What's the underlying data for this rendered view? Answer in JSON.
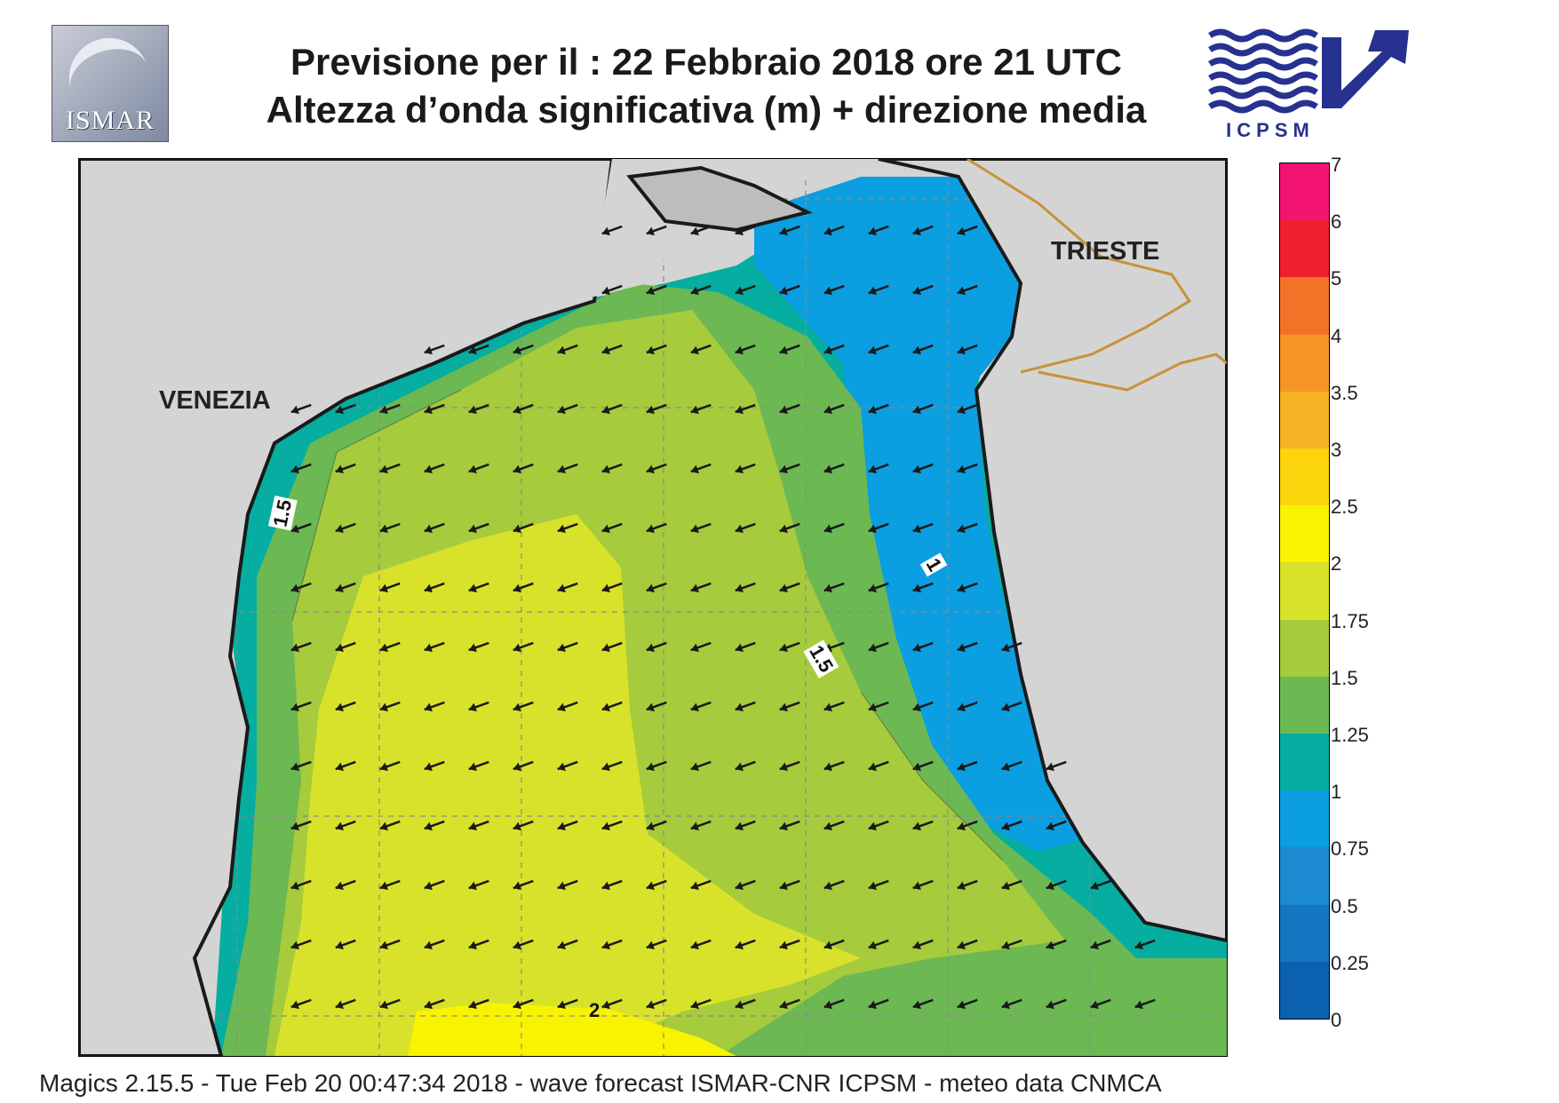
{
  "header": {
    "line1": "Previsione per il  :  22  Febbraio 2018   ore 21 UTC",
    "line2": "Altezza d’onda significativa (m) + direzione media"
  },
  "logos": {
    "left_text": "ISMAR",
    "right_text": "ICPSM",
    "brand_color": "#27318f"
  },
  "map": {
    "cities": [
      {
        "name": "VENEZIA"
      },
      {
        "name": "TRIESTE"
      }
    ],
    "contour_labels": [
      "1.5",
      "1.5",
      "1",
      "2"
    ],
    "arrow_direction": "south-west",
    "colors": {
      "land": "#d4d4d4",
      "coast": "#1a1a1a",
      "border": "#c8923a",
      "grid": "#8a8a8a",
      "arrow": "#1a1a1a"
    }
  },
  "legend": {
    "labels": [
      "7",
      "6",
      "5",
      "4",
      "3.5",
      "3",
      "2.5",
      "2",
      "1.75",
      "1.5",
      "1.25",
      "1",
      "0.75",
      "0.5",
      "0.25",
      "0"
    ],
    "bins": [
      {
        "range": "6-7",
        "color": "#f21470"
      },
      {
        "range": "5-6",
        "color": "#ee2030"
      },
      {
        "range": "4-5",
        "color": "#f37228"
      },
      {
        "range": "3.5-4",
        "color": "#f59526"
      },
      {
        "range": "3-3.5",
        "color": "#f8b225"
      },
      {
        "range": "2.5-3",
        "color": "#fcd40c"
      },
      {
        "range": "2-2.5",
        "color": "#f8f300"
      },
      {
        "range": "1.75-2",
        "color": "#d8e22a"
      },
      {
        "range": "1.5-1.75",
        "color": "#a6cb3c"
      },
      {
        "range": "1.25-1.5",
        "color": "#6cb853"
      },
      {
        "range": "1-1.25",
        "color": "#06ada1"
      },
      {
        "range": "0.75-1",
        "color": "#0b9ee0"
      },
      {
        "range": "0.5-0.75",
        "color": "#1b8ad0"
      },
      {
        "range": "0.25-0.5",
        "color": "#1476c0"
      },
      {
        "range": "0-0.25",
        "color": "#0c60b0"
      }
    ]
  },
  "footer": {
    "text": "Magics 2.15.5 - Tue Feb 20 00:47:34 2018 - wave forecast  ISMAR-CNR  ICPSM - meteo data   CNMCA"
  }
}
